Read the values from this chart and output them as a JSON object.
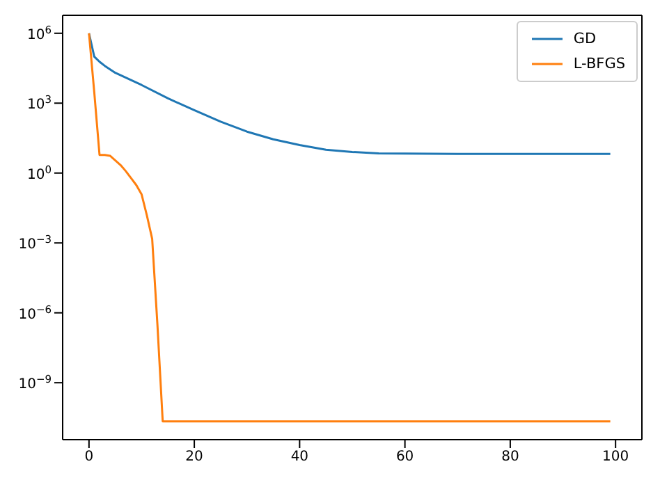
{
  "chart_data": {
    "type": "line",
    "xlim": [
      -5,
      105
    ],
    "xticks": [
      0,
      20,
      40,
      60,
      80,
      100
    ],
    "log": "y",
    "ylim": [
      3.6e-12,
      5900000.0
    ],
    "yticks": [
      {
        "value": 1e-09,
        "label": "10$^{−9}$"
      },
      {
        "value": 1e-06,
        "label": "10$^{−6}$"
      },
      {
        "value": 0.001,
        "label": "10$^{−3}$"
      },
      {
        "value": 1,
        "label": "10$^{0}$"
      },
      {
        "value": 1000,
        "label": "10$^{3}$"
      },
      {
        "value": 1000000,
        "label": "10$^{6}$"
      }
    ],
    "legend": "top right",
    "series": [
      {
        "name": "GD",
        "color": "#1f77b4",
        "x": [
          0,
          1,
          2,
          3,
          5,
          10,
          15,
          20,
          25,
          30,
          35,
          40,
          45,
          50,
          55,
          60,
          70,
          80,
          90,
          99
        ],
        "values": [
          1000000,
          100000,
          60000,
          40000,
          20000,
          6000,
          1600,
          500,
          160,
          60,
          28,
          16,
          10,
          8,
          7,
          6.8,
          6.6,
          6.6,
          6.6,
          6.6
        ]
      },
      {
        "name": "L-BFGS",
        "color": "#ff7f0e",
        "x": [
          0,
          1,
          2,
          3,
          4,
          5,
          6,
          7,
          8,
          9,
          10,
          11,
          12,
          13,
          14,
          99
        ],
        "values": [
          1000000,
          3000,
          6,
          6,
          5.5,
          3.5,
          2.2,
          1.2,
          0.6,
          0.3,
          0.12,
          0.015,
          0.0015,
          3e-07,
          2.2e-11,
          2.2e-11
        ]
      }
    ]
  }
}
